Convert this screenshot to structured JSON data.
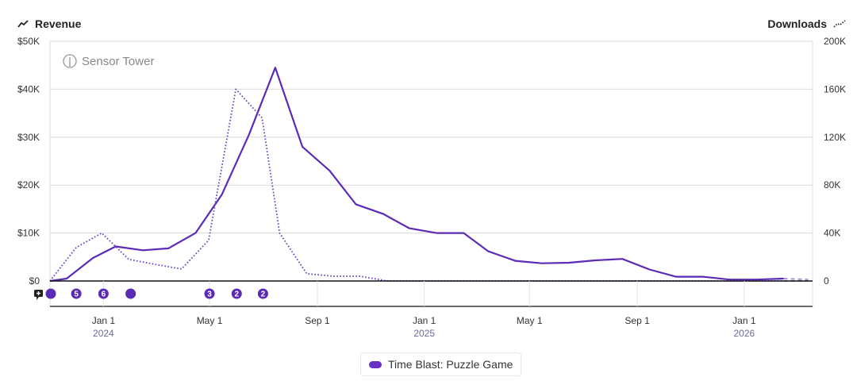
{
  "header": {
    "left_title": "Revenue",
    "left_icon": "trend-line-icon",
    "right_title": "Downloads",
    "right_icon": "dotted-trend-icon"
  },
  "watermark": "Sensor Tower",
  "legend": {
    "label": "Time Blast: Puzzle Game",
    "color": "#6a2fc4"
  },
  "chart_data": {
    "type": "line",
    "title": "",
    "left_axis": {
      "label": "Revenue",
      "ticks": [
        "$0",
        "$10K",
        "$20K",
        "$30K",
        "$40K",
        "$50K"
      ],
      "range": [
        0,
        50000
      ]
    },
    "right_axis": {
      "label": "Downloads",
      "ticks": [
        "0",
        "40K",
        "80K",
        "120K",
        "160K",
        "200K"
      ],
      "range": [
        0,
        200000
      ]
    },
    "x_ticks": [
      {
        "label": "Jan 1",
        "year": "2024",
        "date": "2024-01-01"
      },
      {
        "label": "May 1",
        "year": "",
        "date": "2024-05-01"
      },
      {
        "label": "Sep 1",
        "year": "",
        "date": "2024-09-01"
      },
      {
        "label": "Jan 1",
        "year": "2025",
        "date": "2025-01-01"
      },
      {
        "label": "May 1",
        "year": "",
        "date": "2025-05-01"
      },
      {
        "label": "Sep 1",
        "year": "",
        "date": "2025-09-01"
      },
      {
        "label": "Jan 1",
        "year": "2026",
        "date": "2026-01-01"
      }
    ],
    "grid": true,
    "legend_position": "bottom-center",
    "series": [
      {
        "name": "Revenue",
        "axis": "left",
        "style": "solid",
        "color": "#5b2bb5",
        "points": [
          [
            "2023-11-01",
            0
          ],
          [
            "2023-11-20",
            500
          ],
          [
            "2023-12-20",
            4800
          ],
          [
            "2024-01-15",
            7200
          ],
          [
            "2024-02-15",
            6400
          ],
          [
            "2024-03-15",
            6800
          ],
          [
            "2024-04-15",
            10000
          ],
          [
            "2024-05-15",
            18000
          ],
          [
            "2024-06-15",
            30500
          ],
          [
            "2024-07-15",
            44500
          ],
          [
            "2024-08-15",
            28000
          ],
          [
            "2024-09-15",
            23000
          ],
          [
            "2024-10-15",
            16000
          ],
          [
            "2024-11-15",
            14000
          ],
          [
            "2024-12-15",
            11000
          ],
          [
            "2025-01-15",
            10000
          ],
          [
            "2025-02-15",
            10000
          ],
          [
            "2025-03-15",
            6200
          ],
          [
            "2025-04-15",
            4200
          ],
          [
            "2025-05-15",
            3700
          ],
          [
            "2025-06-15",
            3800
          ],
          [
            "2025-07-15",
            4300
          ],
          [
            "2025-08-15",
            4600
          ],
          [
            "2025-09-15",
            2400
          ],
          [
            "2025-10-15",
            900
          ],
          [
            "2025-11-15",
            900
          ],
          [
            "2025-12-15",
            300
          ],
          [
            "2026-01-15",
            300
          ],
          [
            "2026-02-15",
            500
          ]
        ],
        "projected": [
          [
            "2026-02-15",
            500
          ],
          [
            "2026-03-15",
            300
          ]
        ]
      },
      {
        "name": "Downloads",
        "axis": "right",
        "style": "dotted",
        "color": "#6a3fc8",
        "points": [
          [
            "2023-11-01",
            0
          ],
          [
            "2023-12-01",
            28000
          ],
          [
            "2023-12-30",
            40000
          ],
          [
            "2024-01-30",
            18000
          ],
          [
            "2024-02-28",
            14000
          ],
          [
            "2024-03-30",
            10000
          ],
          [
            "2024-04-30",
            34000
          ],
          [
            "2024-05-31",
            160000
          ],
          [
            "2024-06-30",
            136000
          ],
          [
            "2024-07-20",
            40000
          ],
          [
            "2024-08-20",
            6000
          ],
          [
            "2024-09-20",
            4000
          ],
          [
            "2024-10-20",
            4000
          ],
          [
            "2024-11-20",
            0
          ],
          [
            "2025-01-20",
            0
          ],
          [
            "2025-06-20",
            0
          ],
          [
            "2025-12-20",
            0
          ],
          [
            "2026-02-15",
            0
          ]
        ],
        "projected": [
          [
            "2026-02-15",
            0
          ],
          [
            "2026-03-15",
            0
          ]
        ]
      }
    ],
    "event_markers": [
      {
        "date": "2023-11-01",
        "count": ""
      },
      {
        "date": "2023-12-01",
        "count": "5"
      },
      {
        "date": "2024-01-01",
        "count": "6"
      },
      {
        "date": "2024-02-01",
        "count": ""
      },
      {
        "date": "2024-05-01",
        "count": "3"
      },
      {
        "date": "2024-06-01",
        "count": "2"
      },
      {
        "date": "2024-07-01",
        "count": "2"
      }
    ]
  }
}
